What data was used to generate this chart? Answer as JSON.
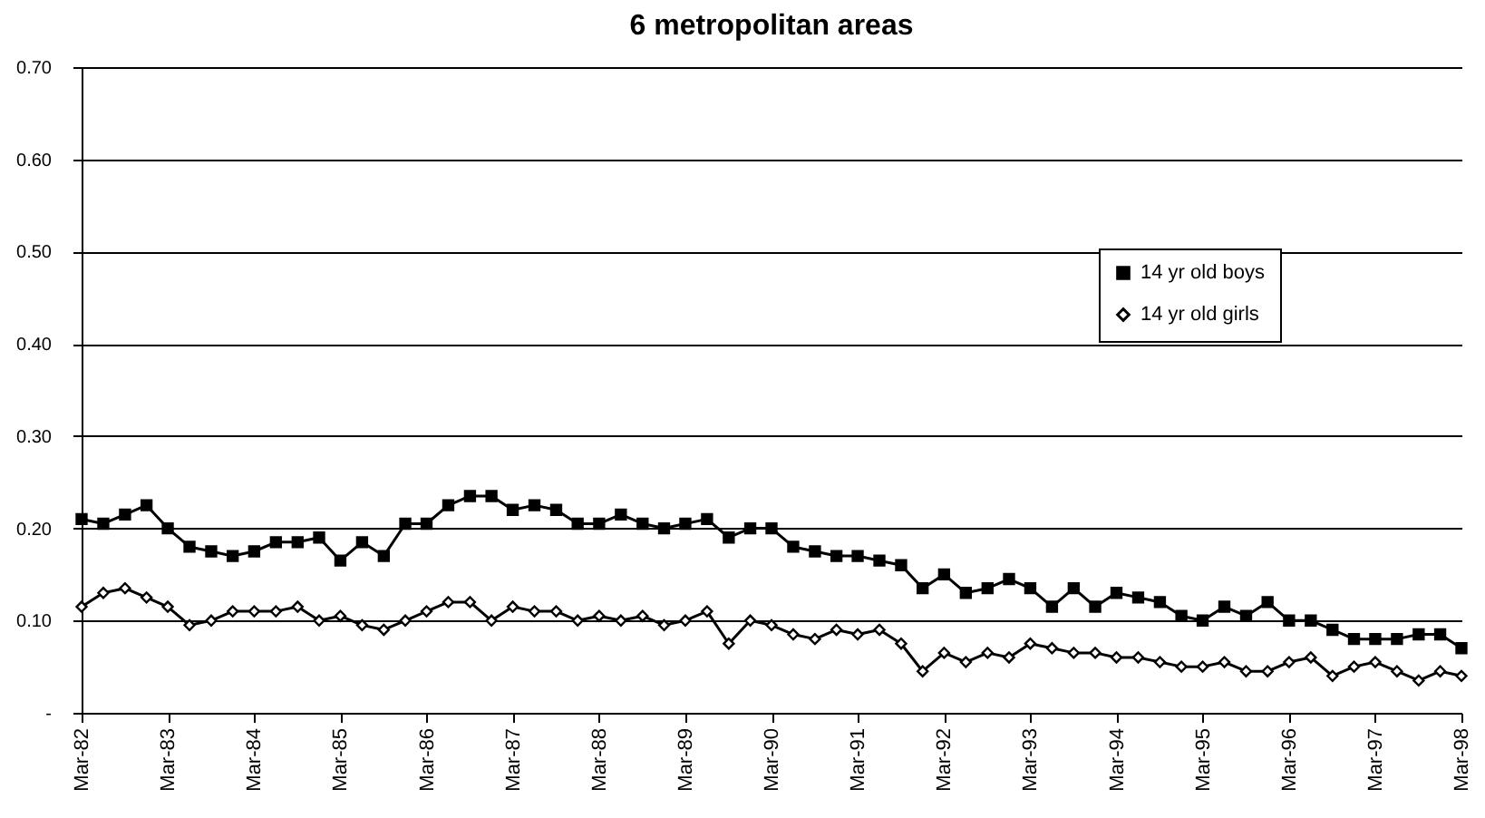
{
  "chart_data": {
    "type": "line",
    "title": "6 metropolitan areas",
    "x": [
      "1982-03",
      "1982-06",
      "1982-09",
      "1982-12",
      "1983-03",
      "1983-06",
      "1983-09",
      "1983-12",
      "1984-03",
      "1984-06",
      "1984-09",
      "1984-12",
      "1985-03",
      "1985-06",
      "1985-09",
      "1985-12",
      "1986-03",
      "1986-06",
      "1986-09",
      "1986-12",
      "1987-03",
      "1987-06",
      "1987-09",
      "1987-12",
      "1988-03",
      "1988-06",
      "1988-09",
      "1988-12",
      "1989-03",
      "1989-06",
      "1989-09",
      "1989-12",
      "1990-03",
      "1990-06",
      "1990-09",
      "1990-12",
      "1991-03",
      "1991-06",
      "1991-09",
      "1991-12",
      "1992-03",
      "1992-06",
      "1992-09",
      "1992-12",
      "1993-03",
      "1993-06",
      "1993-09",
      "1993-12",
      "1994-03",
      "1994-06",
      "1994-09",
      "1994-12",
      "1995-03",
      "1995-06",
      "1995-09",
      "1995-12",
      "1996-03",
      "1996-06",
      "1996-09",
      "1996-12",
      "1997-03",
      "1997-06",
      "1997-09",
      "1997-12",
      "1998-03"
    ],
    "series": [
      {
        "name": "14 yr old boys",
        "color": "#000000",
        "marker": "square",
        "values": [
          0.21,
          0.205,
          0.215,
          0.225,
          0.2,
          0.18,
          0.175,
          0.17,
          0.175,
          0.185,
          0.185,
          0.19,
          0.165,
          0.185,
          0.17,
          0.205,
          0.205,
          0.225,
          0.235,
          0.235,
          0.22,
          0.225,
          0.22,
          0.205,
          0.205,
          0.215,
          0.205,
          0.2,
          0.205,
          0.21,
          0.19,
          0.2,
          0.2,
          0.18,
          0.175,
          0.17,
          0.17,
          0.165,
          0.16,
          0.135,
          0.15,
          0.13,
          0.135,
          0.145,
          0.135,
          0.115,
          0.135,
          0.115,
          0.13,
          0.125,
          0.12,
          0.105,
          0.1,
          0.115,
          0.105,
          0.12,
          0.1,
          0.1,
          0.09,
          0.08,
          0.08,
          0.08,
          0.085,
          0.085,
          0.07
        ]
      },
      {
        "name": "14 yr old girls",
        "color": "#000000",
        "marker": "diamond",
        "values": [
          0.115,
          0.13,
          0.135,
          0.125,
          0.115,
          0.095,
          0.1,
          0.11,
          0.11,
          0.11,
          0.115,
          0.1,
          0.105,
          0.095,
          0.09,
          0.1,
          0.11,
          0.12,
          0.12,
          0.1,
          0.115,
          0.11,
          0.11,
          0.1,
          0.105,
          0.1,
          0.105,
          0.095,
          0.1,
          0.11,
          0.075,
          0.1,
          0.095,
          0.085,
          0.08,
          0.09,
          0.085,
          0.09,
          0.075,
          0.045,
          0.065,
          0.055,
          0.065,
          0.06,
          0.075,
          0.07,
          0.065,
          0.065,
          0.06,
          0.06,
          0.055,
          0.05,
          0.05,
          0.055,
          0.045,
          0.045,
          0.055,
          0.06,
          0.04,
          0.05,
          0.055,
          0.045,
          0.035,
          0.045,
          0.04
        ]
      }
    ],
    "xlim": [
      "1982-03",
      "1998-03"
    ],
    "xticks": [
      {
        "value": "1982-03",
        "label": "Mar-82"
      },
      {
        "value": "1983-03",
        "label": "Mar-83"
      },
      {
        "value": "1984-03",
        "label": "Mar-84"
      },
      {
        "value": "1985-03",
        "label": "Mar-85"
      },
      {
        "value": "1986-03",
        "label": "Mar-86"
      },
      {
        "value": "1987-03",
        "label": "Mar-87"
      },
      {
        "value": "1988-03",
        "label": "Mar-88"
      },
      {
        "value": "1989-03",
        "label": "Mar-89"
      },
      {
        "value": "1990-03",
        "label": "Mar-90"
      },
      {
        "value": "1991-03",
        "label": "Mar-91"
      },
      {
        "value": "1992-03",
        "label": "Mar-92"
      },
      {
        "value": "1993-03",
        "label": "Mar-93"
      },
      {
        "value": "1994-03",
        "label": "Mar-94"
      },
      {
        "value": "1995-03",
        "label": "Mar-95"
      },
      {
        "value": "1996-03",
        "label": "Mar-96"
      },
      {
        "value": "1997-03",
        "label": "Mar-97"
      },
      {
        "value": "1998-03",
        "label": "Mar-98"
      }
    ],
    "ylim": [
      0,
      0.7
    ],
    "yticks": [
      {
        "value": 0,
        "label": "-"
      },
      {
        "value": 0.1,
        "label": "0.10"
      },
      {
        "value": 0.2,
        "label": "0.20"
      },
      {
        "value": 0.3,
        "label": "0.30"
      },
      {
        "value": 0.4,
        "label": "0.40"
      },
      {
        "value": 0.5,
        "label": "0.50"
      },
      {
        "value": 0.6,
        "label": "0.60"
      },
      {
        "value": 0.7,
        "label": "0.70"
      }
    ],
    "grid": "y",
    "legend": "top right"
  }
}
